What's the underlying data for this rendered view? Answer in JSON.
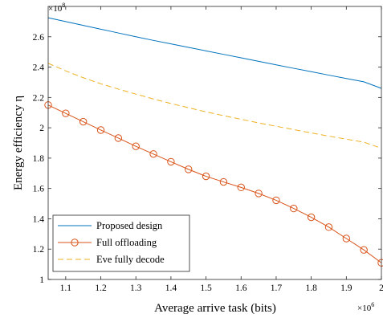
{
  "chart_data": {
    "type": "line",
    "xlabel": "Average arrive task (bits)",
    "ylabel": "Energy efficiency η",
    "x_exponent": "×10^6",
    "y_exponent": "×10^8",
    "x_exponent_base": "×10",
    "x_exponent_power": "6",
    "y_exponent_base": "×10",
    "y_exponent_power": "8",
    "xlim": [
      1.05,
      2.0
    ],
    "ylim": [
      1.0,
      2.8
    ],
    "xticks": [
      1.1,
      1.2,
      1.3,
      1.4,
      1.5,
      1.6,
      1.7,
      1.8,
      1.9,
      2.0
    ],
    "xtick_labels": [
      "1.1",
      "1.2",
      "1.3",
      "1.4",
      "1.5",
      "1.6",
      "1.7",
      "1.8",
      "1.9",
      "2"
    ],
    "yticks": [
      1.0,
      1.2,
      1.4,
      1.6,
      1.8,
      2.0,
      2.2,
      2.4,
      2.6
    ],
    "ytick_labels": [
      "1",
      "1.2",
      "1.4",
      "1.6",
      "1.8",
      "2",
      "2.2",
      "2.4",
      "2.6"
    ],
    "grid": false,
    "legend_position": "bottom-left",
    "series": [
      {
        "name": "Proposed design",
        "color": "#0072BD",
        "style": "solid",
        "marker": "none",
        "x": [
          1.05,
          1.1,
          1.15,
          1.2,
          1.25,
          1.3,
          1.35,
          1.4,
          1.45,
          1.5,
          1.55,
          1.6,
          1.65,
          1.7,
          1.75,
          1.8,
          1.85,
          1.9,
          1.95,
          2.0
        ],
        "y": [
          2.725,
          2.7,
          2.675,
          2.65,
          2.625,
          2.6,
          2.576,
          2.553,
          2.53,
          2.507,
          2.484,
          2.461,
          2.438,
          2.415,
          2.392,
          2.37,
          2.347,
          2.325,
          2.303,
          2.26
        ]
      },
      {
        "name": "Full offloading",
        "color": "#D95319",
        "style": "solid",
        "marker": "circle",
        "x": [
          1.05,
          1.1,
          1.15,
          1.2,
          1.25,
          1.3,
          1.35,
          1.4,
          1.45,
          1.5,
          1.55,
          1.6,
          1.65,
          1.7,
          1.75,
          1.8,
          1.85,
          1.9,
          1.95,
          2.0
        ],
        "y": [
          2.15,
          2.095,
          2.04,
          1.985,
          1.932,
          1.878,
          1.827,
          1.776,
          1.726,
          1.68,
          1.643,
          1.607,
          1.567,
          1.522,
          1.468,
          1.41,
          1.345,
          1.27,
          1.195,
          1.11
        ]
      },
      {
        "name": "Eve fully decode",
        "color": "#EDB120",
        "style": "dashed",
        "marker": "none",
        "x": [
          1.05,
          1.1,
          1.15,
          1.2,
          1.25,
          1.3,
          1.35,
          1.4,
          1.45,
          1.5,
          1.55,
          1.6,
          1.65,
          1.7,
          1.75,
          1.8,
          1.85,
          1.9,
          1.95,
          2.0
        ],
        "y": [
          2.425,
          2.375,
          2.33,
          2.29,
          2.255,
          2.222,
          2.19,
          2.16,
          2.132,
          2.105,
          2.08,
          2.056,
          2.032,
          2.01,
          1.988,
          1.966,
          1.945,
          1.925,
          1.905,
          1.865
        ]
      }
    ]
  }
}
